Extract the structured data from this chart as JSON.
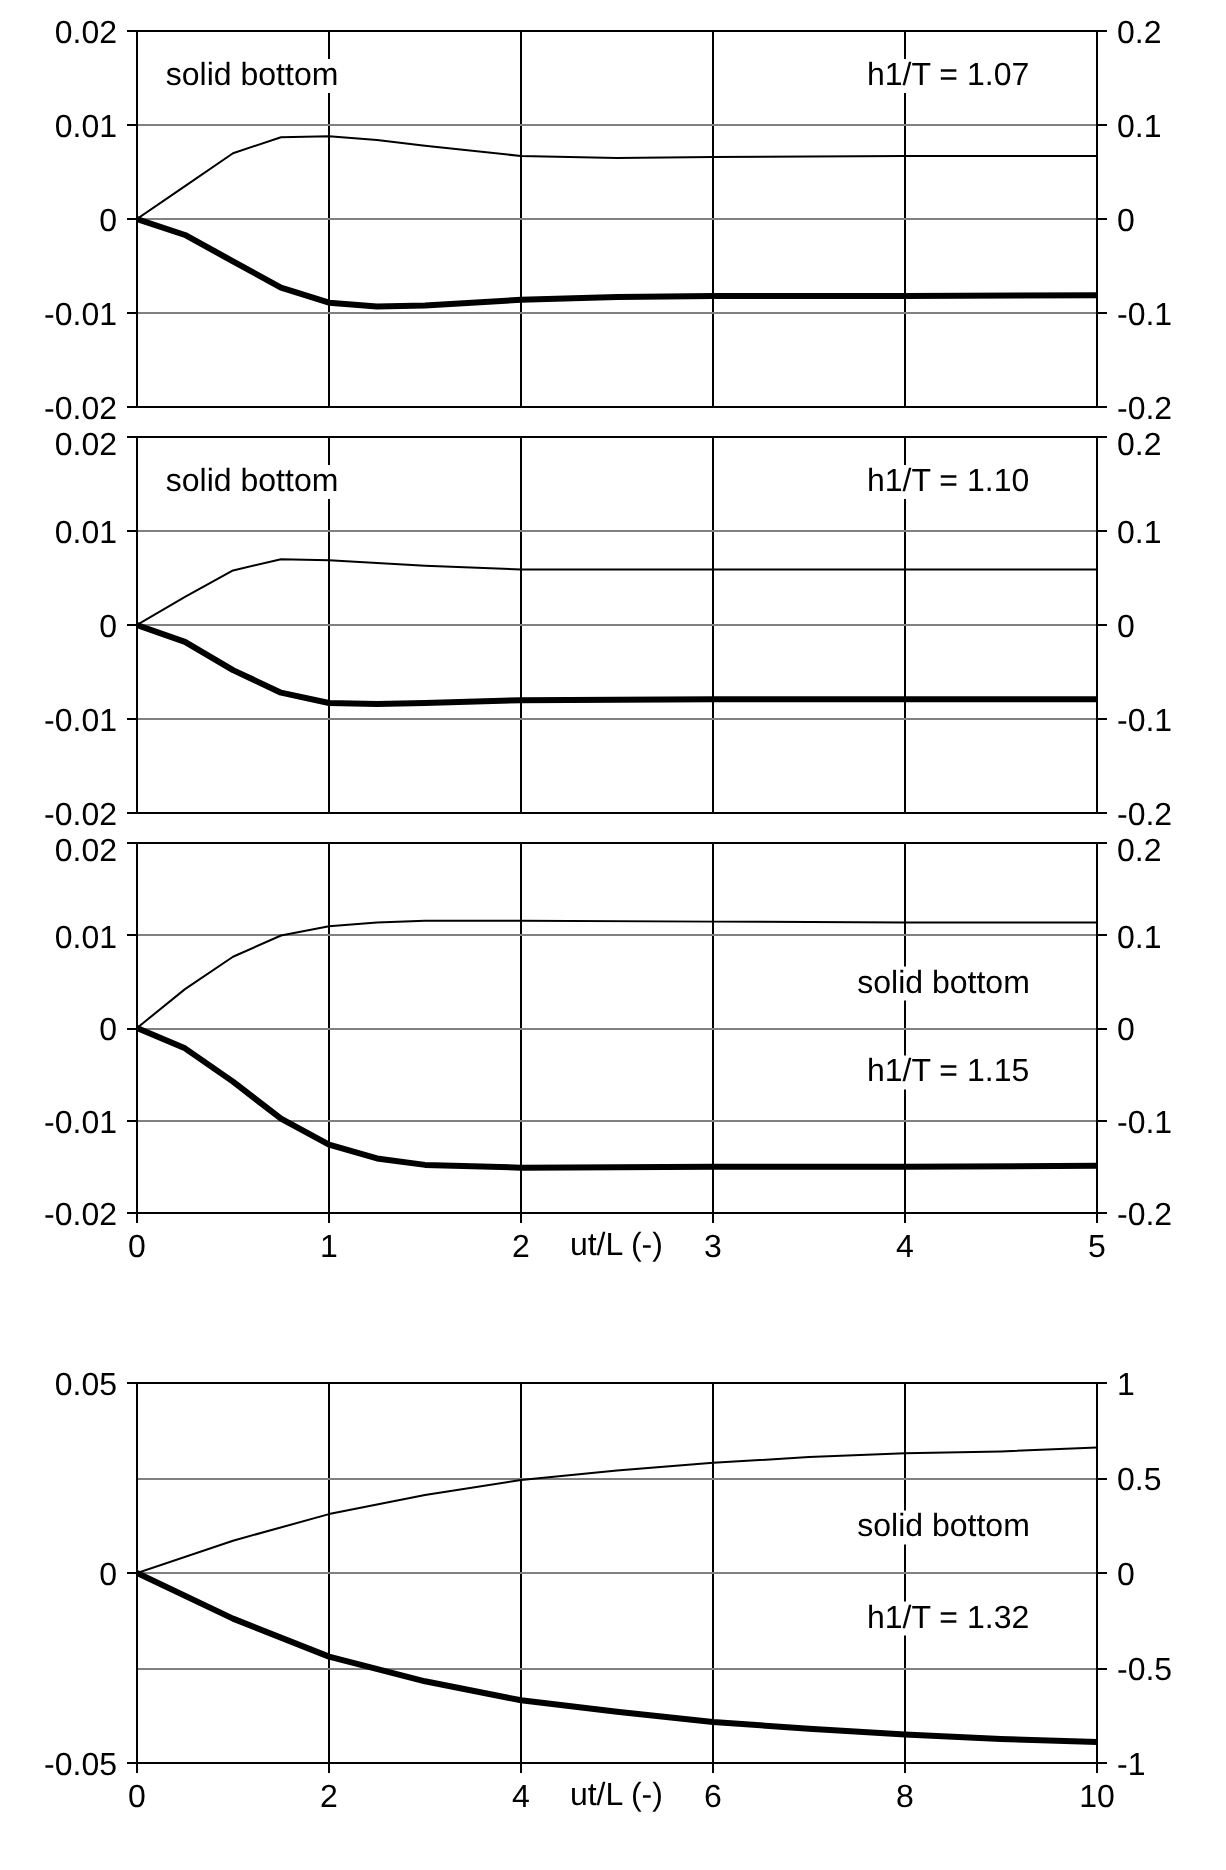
{
  "chart_data": [
    {
      "type": "line",
      "xlim": [
        0,
        5
      ],
      "xticks": [
        0,
        1,
        2,
        3,
        4,
        5
      ],
      "ylim": [
        -0.02,
        0.02
      ],
      "yticks": [
        -0.02,
        -0.01,
        0,
        0.01,
        0.02
      ],
      "y2lim": [
        -0.2,
        0.2
      ],
      "y2ticks": [
        -0.2,
        -0.1,
        0,
        0.1,
        0.2
      ],
      "grid": true,
      "tick_labels": "y",
      "annotations": [
        "solid bottom",
        "h1/T = 1.07"
      ],
      "series": [
        {
          "color": "#000000",
          "axis": "y2",
          "x": [
            0,
            0.25,
            0.5,
            0.75,
            1,
            1.25,
            1.5,
            2,
            2.5,
            3,
            4,
            5
          ],
          "values": [
            0,
            0.035,
            0.07,
            0.087,
            0.088,
            0.084,
            0.078,
            0.067,
            0.065,
            0.066,
            0.067,
            0.067
          ]
        },
        {
          "color": "#000000",
          "x": [
            0,
            0.25,
            0.5,
            0.75,
            1,
            1.25,
            1.5,
            2,
            2.5,
            3,
            4,
            5
          ],
          "values": [
            0,
            -0.0017,
            -0.0045,
            -0.0073,
            -0.0089,
            -0.0093,
            -0.0092,
            -0.0086,
            -0.0083,
            -0.0082,
            -0.0082,
            -0.0081
          ]
        }
      ]
    },
    {
      "type": "line",
      "xlim": [
        0,
        5
      ],
      "xticks": [
        0,
        1,
        2,
        3,
        4,
        5
      ],
      "ylim": [
        -0.02,
        0.02
      ],
      "yticks": [
        -0.02,
        -0.01,
        0,
        0.01,
        0.02
      ],
      "y2lim": [
        -0.2,
        0.2
      ],
      "y2ticks": [
        -0.2,
        -0.1,
        0,
        0.1,
        0.2
      ],
      "grid": true,
      "tick_labels": "y",
      "annotations": [
        "solid bottom",
        "h1/T = 1.10"
      ],
      "series": [
        {
          "color": "#000000",
          "axis": "y2",
          "x": [
            0,
            0.25,
            0.5,
            0.75,
            1,
            1.5,
            2,
            3,
            4,
            5
          ],
          "values": [
            0,
            0.03,
            0.058,
            0.07,
            0.069,
            0.063,
            0.059,
            0.059,
            0.059,
            0.059
          ]
        },
        {
          "color": "#000000",
          "x": [
            0,
            0.25,
            0.5,
            0.75,
            1,
            1.25,
            1.5,
            2,
            3,
            4,
            5
          ],
          "values": [
            0,
            -0.0018,
            -0.0048,
            -0.0072,
            -0.0083,
            -0.0084,
            -0.0083,
            -0.008,
            -0.0079,
            -0.0079,
            -0.0079
          ]
        }
      ]
    },
    {
      "type": "line",
      "xlabel": "ut/L (-)",
      "xlim": [
        0,
        5
      ],
      "xticks": [
        0,
        1,
        2,
        3,
        4,
        5
      ],
      "ylim": [
        -0.02,
        0.02
      ],
      "yticks": [
        -0.02,
        -0.01,
        0,
        0.01,
        0.02
      ],
      "y2lim": [
        -0.2,
        0.2
      ],
      "y2ticks": [
        -0.2,
        -0.1,
        0,
        0.1,
        0.2
      ],
      "grid": true,
      "annotations": [
        "solid bottom",
        "h1/T = 1.15"
      ],
      "series": [
        {
          "color": "#000000",
          "axis": "y2",
          "x": [
            0,
            0.25,
            0.5,
            0.75,
            1,
            1.25,
            1.5,
            2,
            3,
            4,
            5
          ],
          "values": [
            0,
            0.042,
            0.077,
            0.1,
            0.11,
            0.114,
            0.116,
            0.116,
            0.115,
            0.114,
            0.114
          ]
        },
        {
          "color": "#000000",
          "x": [
            0,
            0.25,
            0.5,
            0.75,
            1,
            1.25,
            1.5,
            2,
            3,
            4,
            5
          ],
          "values": [
            0,
            -0.0022,
            -0.0058,
            -0.0098,
            -0.0126,
            -0.0141,
            -0.0148,
            -0.0151,
            -0.015,
            -0.015,
            -0.0149
          ]
        }
      ]
    },
    {
      "type": "line",
      "xlabel": "ut/L (-)",
      "xlim": [
        0,
        10
      ],
      "xticks": [
        0,
        2,
        4,
        6,
        8,
        10
      ],
      "ylim": [
        -0.05,
        0.05
      ],
      "yticks": [
        -0.05,
        0,
        0.05
      ],
      "y2lim": [
        -1,
        1
      ],
      "y2ticks": [
        -1,
        -0.5,
        0,
        0.5,
        1
      ],
      "grid": true,
      "annotations": [
        "solid bottom",
        "h1/T = 1.32"
      ],
      "series": [
        {
          "color": "#000000",
          "axis": "y2",
          "x": [
            0,
            1,
            2,
            3,
            4,
            5,
            6,
            7,
            8,
            9,
            10
          ],
          "values": [
            0,
            0.17,
            0.31,
            0.41,
            0.49,
            0.54,
            0.58,
            0.61,
            0.63,
            0.64,
            0.66
          ]
        },
        {
          "color": "#000000",
          "x": [
            0,
            1,
            2,
            3,
            4,
            5,
            6,
            7,
            8,
            9,
            10
          ],
          "values": [
            0,
            -0.012,
            -0.022,
            -0.0285,
            -0.0335,
            -0.0365,
            -0.0392,
            -0.041,
            -0.0425,
            -0.0437,
            -0.0445
          ]
        }
      ]
    }
  ]
}
